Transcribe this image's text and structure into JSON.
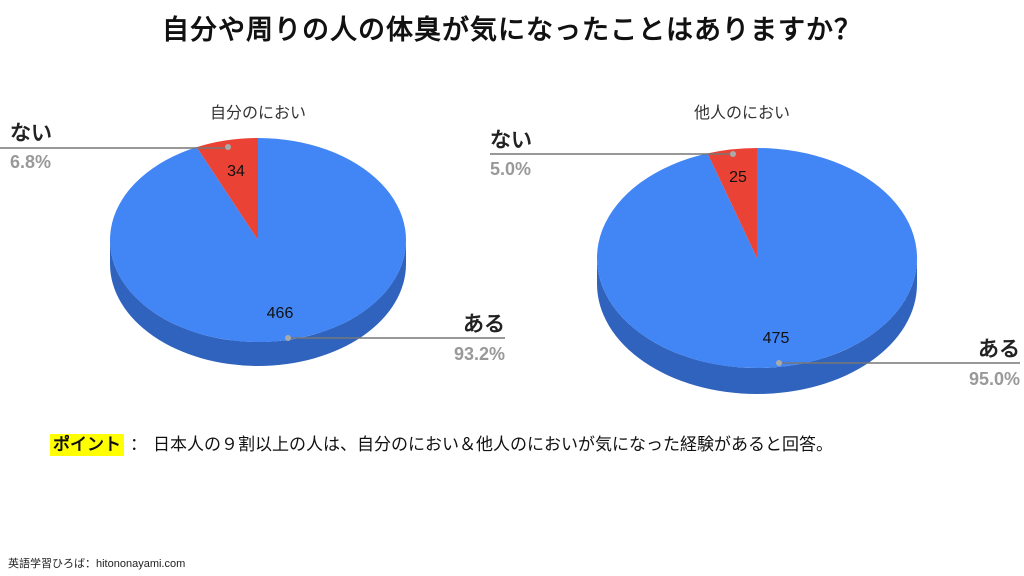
{
  "title": "自分や周りの人の体臭が気になったことはありますか？",
  "chart_data": [
    {
      "type": "pie",
      "title": "自分のにおい",
      "categories": [
        "ある",
        "ない"
      ],
      "values": [
        466,
        34
      ],
      "percent_labels": [
        "93.2%",
        "6.8%"
      ],
      "colors": [
        "#4285f4",
        "#ea4335"
      ]
    },
    {
      "type": "pie",
      "title": "他人のにおい",
      "categories": [
        "ある",
        "ない"
      ],
      "values": [
        475,
        25
      ],
      "percent_labels": [
        "95.0%",
        "5.0%"
      ],
      "colors": [
        "#4285f4",
        "#ea4335"
      ]
    }
  ],
  "point": {
    "label": "ポイント",
    "colon": "：",
    "text": "日本人の９割以上の人は、自分のにおい＆他人のにおいが気になった経験があると回答。"
  },
  "footer": {
    "prefix": "英語学習ひろば：",
    "site": "hitononayami.com"
  }
}
